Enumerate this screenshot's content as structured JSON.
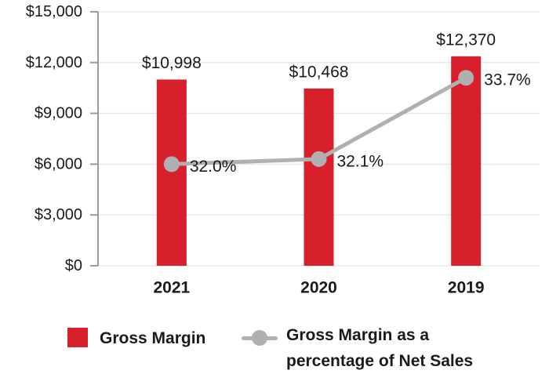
{
  "chart_data": {
    "type": "bar",
    "subtype": "combo-bar-line",
    "categories": [
      "2021",
      "2020",
      "2019"
    ],
    "series": [
      {
        "name": "Gross Margin",
        "type": "bar",
        "axis": "primary",
        "color": "#d7202c",
        "values": [
          10998,
          10468,
          12370
        ],
        "data_labels": [
          "$10,998",
          "$10,468",
          "$12,370"
        ]
      },
      {
        "name": "Gross Margin as a percentage of Net Sales",
        "type": "line",
        "axis": "secondary",
        "color": "#b0b0b0",
        "values": [
          32.0,
          32.1,
          33.7
        ],
        "data_labels": [
          "32.0%",
          "32.1%",
          "33.7%"
        ]
      }
    ],
    "title": "",
    "xlabel": "",
    "ylabel": "",
    "y_axis": {
      "min": 0,
      "max": 15000,
      "tick_step": 3000,
      "tick_labels": [
        "$0",
        "$3,000",
        "$6,000",
        "$9,000",
        "$12,000",
        "$15,000"
      ]
    },
    "y2_axis": {
      "min": 30,
      "max": 35,
      "visible": false
    },
    "grid": true,
    "legend_position": "bottom"
  },
  "legend": {
    "items": [
      {
        "label": "Gross Margin",
        "swatch": "square",
        "color": "#d7202c"
      },
      {
        "label_line1": "Gross Margin as a",
        "label_line2": "percentage of Net Sales",
        "swatch": "line-dot",
        "color": "#b0b0b0"
      }
    ]
  },
  "colors": {
    "bar": "#d7202c",
    "line": "#b0b0b0",
    "axis": "#9a9a9a",
    "gridline": "#e8e8e8",
    "text": "#1a1a1a"
  }
}
